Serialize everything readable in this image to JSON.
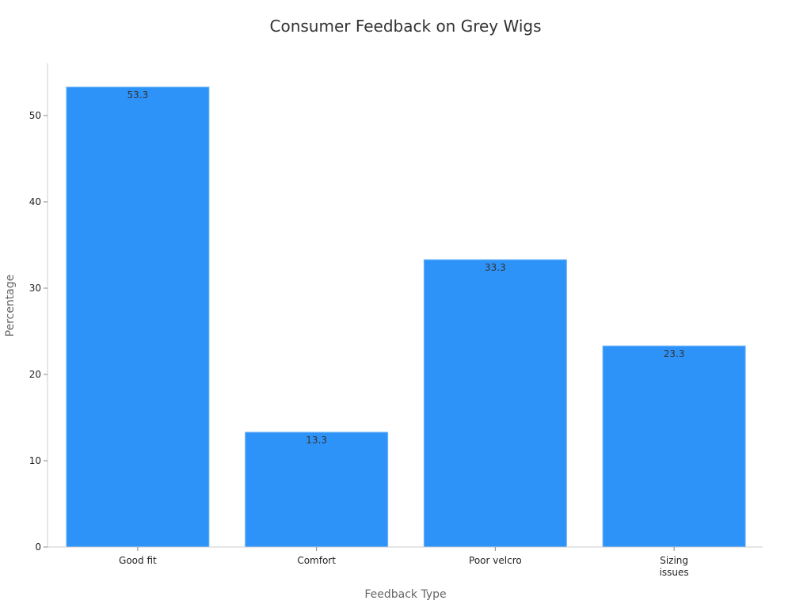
{
  "chart_data": {
    "type": "bar",
    "title": "Consumer Feedback on Grey Wigs",
    "xlabel": "Feedback Type",
    "ylabel": "Percentage",
    "categories": [
      "Good fit",
      "Comfort",
      "Poor velcro",
      "Sizing issues"
    ],
    "values": [
      53.3,
      13.3,
      33.3,
      23.3
    ],
    "data_labels": [
      "53.3",
      "13.3",
      "33.3",
      "23.3"
    ],
    "yticks": [
      0,
      10,
      20,
      30,
      40,
      50
    ],
    "ylim": [
      0,
      56
    ],
    "grid": false,
    "bar_color": "#2e93f8"
  }
}
